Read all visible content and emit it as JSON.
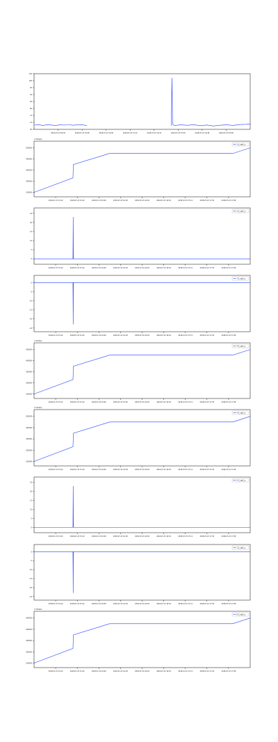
{
  "colors": {
    "line": "#1f3fff",
    "frame": "#000000",
    "bg": "#ffffff"
  },
  "chart_data": [
    {
      "type": "line",
      "x_ticks": [
        "2018-07-23 09:36",
        "2018-07-23 10:48",
        "2018-07-23 12:00",
        "2018-07-23 13:12",
        "2018-07-23 14:24",
        "2018-07-23 15:36",
        "2018-07-23 16:48",
        "2018-07-23 18:00"
      ],
      "y_ticks": [
        "65",
        "70",
        "75",
        "80",
        "85",
        "90",
        "95",
        "100",
        "105"
      ],
      "ylim": [
        65,
        105
      ],
      "legend": "",
      "offset": "",
      "series": [
        {
          "points": [
            [
              0.0,
              68.0
            ],
            [
              0.02,
              68.4
            ],
            [
              0.04,
              67.8
            ],
            [
              0.06,
              68.2
            ],
            [
              0.08,
              68.1
            ],
            [
              0.1,
              67.7
            ],
            [
              0.12,
              68.3
            ],
            [
              0.14,
              68.0
            ],
            [
              0.16,
              68.5
            ],
            [
              0.18,
              67.9
            ],
            [
              0.2,
              68.2
            ],
            [
              0.22,
              68.4
            ],
            [
              0.24,
              67.8
            ],
            [
              0.245,
              68.0
            ],
            [
              0.25,
              null
            ],
            [
              0.63,
              null
            ],
            [
              0.635,
              67.6
            ],
            [
              0.638,
              102.0
            ],
            [
              0.641,
              68.5
            ],
            [
              0.65,
              67.8
            ],
            [
              0.68,
              68.2
            ],
            [
              0.71,
              67.9
            ],
            [
              0.74,
              68.3
            ],
            [
              0.77,
              67.6
            ],
            [
              0.8,
              68.1
            ],
            [
              0.83,
              67.4
            ],
            [
              0.86,
              67.9
            ],
            [
              0.89,
              68.3
            ],
            [
              0.92,
              67.8
            ],
            [
              0.95,
              68.4
            ],
            [
              0.98,
              68.6
            ],
            [
              1.0,
              68.9
            ]
          ]
        }
      ]
    },
    {
      "type": "line",
      "x_ticks": [
        "2018-07-23 15:24",
        "2018-07-23 15:42",
        "2018-07-23 16:00",
        "2018-07-23 16:18",
        "2018-07-23 16:36",
        "2018-07-23 16:54",
        "2018-07-23 17:12",
        "2018-07-23 17:30",
        "2018-07-23 17:48"
      ],
      "y_ticks": [
        "100000",
        "200000",
        "300000",
        "400000",
        "500000"
      ],
      "ylim": [
        60000,
        560000
      ],
      "legend": "1.6_ugkt_q",
      "offset": "1.5322e9",
      "series": [
        {
          "points": [
            [
              0.0,
              100000
            ],
            [
              0.18,
              230000
            ],
            [
              0.182,
              350000
            ],
            [
              0.35,
              450000
            ],
            [
              0.92,
              450000
            ],
            [
              1.0,
              500000
            ]
          ]
        }
      ]
    },
    {
      "type": "line",
      "x_ticks": [
        "2018-07-23 15:24",
        "2018-07-23 15:42",
        "2018-07-23 16:00",
        "2018-07-23 16:18",
        "2018-07-23 16:36",
        "2018-07-23 16:54",
        "2018-07-23 17:12",
        "2018-07-23 17:30",
        "2018-07-23 17:48"
      ],
      "y_ticks": [
        "0",
        "5",
        "10",
        "15",
        "20",
        "25"
      ],
      "ylim": [
        -3,
        28
      ],
      "legend": "2.0_ugkt_q",
      "offset": "",
      "series": [
        {
          "points": [
            [
              0.0,
              0.0
            ],
            [
              0.18,
              0.0
            ],
            [
              0.181,
              23.0
            ],
            [
              0.182,
              0.0
            ],
            [
              0.35,
              0.0
            ],
            [
              1.0,
              0.0
            ]
          ]
        }
      ]
    },
    {
      "type": "line",
      "x_ticks": [
        "2018-07-23 15:24",
        "2018-07-23 15:42",
        "2018-07-23 16:00",
        "2018-07-23 16:18",
        "2018-07-23 16:36",
        "2018-07-23 16:54",
        "2018-07-23 17:12",
        "2018-07-23 17:30",
        "2018-07-23 17:48"
      ],
      "y_ticks": [
        "0",
        "-5",
        "-10",
        "-15",
        "-20",
        "-25"
      ],
      "ylim": [
        -27,
        4
      ],
      "legend": "7.0_ugkt_q",
      "offset": "",
      "series": [
        {
          "points": [
            [
              0.0,
              0.0
            ],
            [
              0.18,
              0.0
            ],
            [
              0.181,
              -23.0
            ],
            [
              0.182,
              0.0
            ],
            [
              0.35,
              0.0
            ],
            [
              1.0,
              0.0
            ]
          ]
        }
      ]
    },
    {
      "type": "line",
      "x_ticks": [
        "2018-07-23 15:24",
        "2018-07-23 15:42",
        "2018-07-23 16:00",
        "2018-07-23 16:18",
        "2018-07-23 16:36",
        "2018-07-23 16:54",
        "2018-07-23 17:12",
        "2018-07-23 17:30",
        "2018-07-23 17:48"
      ],
      "y_ticks": [
        "100000",
        "200000",
        "300000",
        "400000",
        "500000"
      ],
      "ylim": [
        60000,
        560000
      ],
      "legend": "4.0_ugkt_q",
      "offset": "1.5322e9",
      "series": [
        {
          "points": [
            [
              0.0,
              100000
            ],
            [
              0.18,
              230000
            ],
            [
              0.182,
              350000
            ],
            [
              0.35,
              450000
            ],
            [
              0.92,
              450000
            ],
            [
              1.0,
              500000
            ]
          ]
        }
      ]
    },
    {
      "type": "line",
      "x_ticks": [
        "2018-07-23 15:24",
        "2018-07-23 15:42",
        "2018-07-23 16:00",
        "2018-07-23 16:18",
        "2018-07-23 16:36",
        "2018-07-23 16:54",
        "2018-07-23 17:12",
        "2018-07-23 17:30",
        "2018-07-23 17:48"
      ],
      "y_ticks": [
        "100000",
        "200000",
        "300000",
        "400000",
        "500000"
      ],
      "ylim": [
        60000,
        560000
      ],
      "legend": "4.0_ugkt_q",
      "offset": "1.5322e9",
      "series": [
        {
          "points": [
            [
              0.0,
              100000
            ],
            [
              0.18,
              230000
            ],
            [
              0.182,
              350000
            ],
            [
              0.35,
              450000
            ],
            [
              0.92,
              450000
            ],
            [
              1.0,
              500000
            ]
          ]
        }
      ]
    },
    {
      "type": "line",
      "x_ticks": [
        "2018-07-23 15:24",
        "2018-07-23 15:42",
        "2018-07-23 16:00",
        "2018-07-23 16:18",
        "2018-07-23 16:36",
        "2018-07-23 16:54",
        "2018-07-23 17:12",
        "2018-07-23 17:30",
        "2018-07-23 17:48"
      ],
      "y_ticks": [
        "0",
        "5",
        "10",
        "15",
        "20",
        "25"
      ],
      "ylim": [
        -3,
        28
      ],
      "legend": "5.0_ugkt_q",
      "offset": "",
      "series": [
        {
          "points": [
            [
              0.0,
              0.0
            ],
            [
              0.18,
              0.0
            ],
            [
              0.181,
              23.0
            ],
            [
              0.182,
              0.0
            ],
            [
              0.35,
              0.0
            ],
            [
              1.0,
              0.0
            ]
          ]
        }
      ]
    },
    {
      "type": "line",
      "x_ticks": [
        "2018-07-23 15:24",
        "2018-07-23 15:42",
        "2018-07-23 16:00",
        "2018-07-23 16:18",
        "2018-07-23 16:36",
        "2018-07-23 16:54",
        "2018-07-23 17:12",
        "2018-07-23 17:30",
        "2018-07-23 17:48"
      ],
      "y_ticks": [
        "0",
        "-5",
        "-10",
        "-15",
        "-20",
        "-25"
      ],
      "ylim": [
        -27,
        4
      ],
      "legend": "1.0_ugkt_q",
      "offset": "",
      "series": [
        {
          "points": [
            [
              0.0,
              0.0
            ],
            [
              0.18,
              0.0
            ],
            [
              0.181,
              -23.0
            ],
            [
              0.182,
              0.0
            ],
            [
              0.35,
              0.0
            ],
            [
              1.0,
              0.0
            ]
          ]
        }
      ]
    },
    {
      "type": "line",
      "x_ticks": [
        "2018-07-23 15:24",
        "2018-07-23 15:42",
        "2018-07-23 16:00",
        "2018-07-23 16:18",
        "2018-07-23 16:36",
        "2018-07-23 16:54",
        "2018-07-23 17:12",
        "2018-07-23 17:30",
        "2018-07-23 17:48"
      ],
      "y_ticks": [
        "100000",
        "200000",
        "300000",
        "400000",
        "500000"
      ],
      "ylim": [
        60000,
        560000
      ],
      "legend": "0.0_ugkt_q",
      "offset": "1.5322e9",
      "series": [
        {
          "points": [
            [
              0.0,
              100000
            ],
            [
              0.18,
              230000
            ],
            [
              0.182,
              350000
            ],
            [
              0.35,
              450000
            ],
            [
              0.92,
              450000
            ],
            [
              1.0,
              500000
            ]
          ]
        }
      ]
    }
  ]
}
